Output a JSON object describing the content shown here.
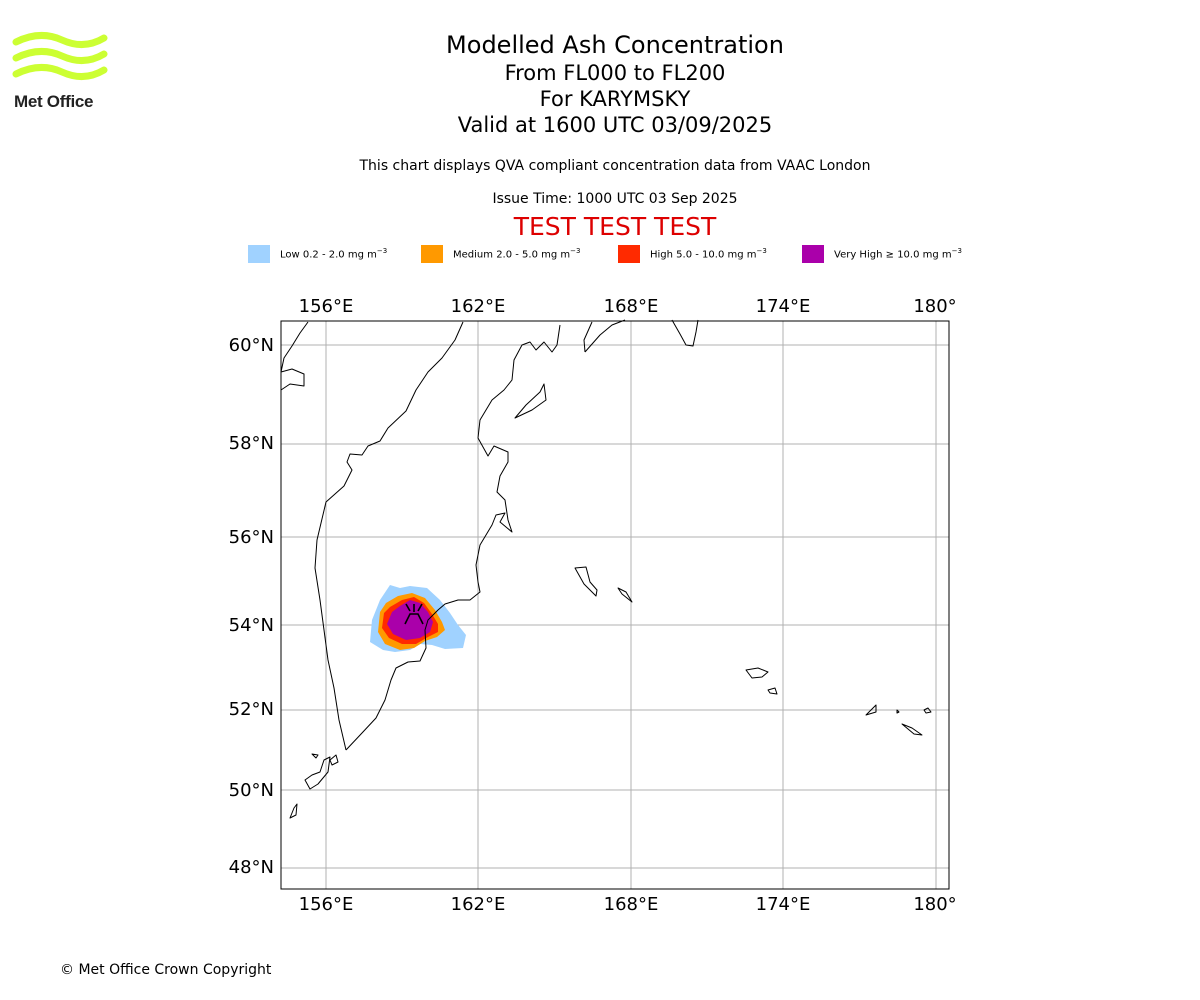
{
  "logo": {
    "text": "Met Office",
    "brand_color": "#ccff33"
  },
  "title": {
    "main": "Modelled Ash Concentration",
    "levels": "From FL000 to FL200",
    "volcano": "For KARYMSKY",
    "valid": "Valid at 1600 UTC 03/09/2025"
  },
  "subtitle": "This chart displays QVA compliant concentration data from VAAC London",
  "issue_time": "Issue Time: 1000 UTC 03 Sep 2025",
  "test_banner": {
    "text": "TEST TEST TEST",
    "color": "#dd0000"
  },
  "legend": [
    {
      "name": "Low",
      "range": "0.2 - 2.0",
      "unit_base": "mg m",
      "unit_exp": "−3",
      "prefix": "",
      "color": "#a0d2ff"
    },
    {
      "name": "Medium",
      "range": "2.0 - 5.0",
      "unit_base": "mg m",
      "unit_exp": "−3",
      "prefix": "",
      "color": "#ff9900"
    },
    {
      "name": "High",
      "range": "5.0 - 10.0",
      "unit_base": "mg m",
      "unit_exp": "−3",
      "prefix": "",
      "color": "#ff2a00"
    },
    {
      "name": "Very High",
      "range": "10.0",
      "unit_base": "mg m",
      "unit_exp": "−3",
      "prefix": "≥",
      "color": "#aa00aa"
    }
  ],
  "map": {
    "lon_ticks": [
      "156°E",
      "162°E",
      "168°E",
      "174°E",
      "180°"
    ],
    "lat_ticks": [
      "60°N",
      "58°N",
      "56°N",
      "54°N",
      "52°N",
      "50°N",
      "48°N"
    ],
    "extent": {
      "lon_min": 154.2,
      "lon_max": 180.7,
      "lat_min": 47.5,
      "lat_max": 60.5
    },
    "volcano": {
      "name": "KARYMSKY",
      "lon": 159.44,
      "lat": 54.05,
      "icon": "volcano-icon"
    },
    "ash_levels": [
      "Low",
      "Medium",
      "High",
      "Very High"
    ]
  },
  "copyright": "© Met Office Crown Copyright"
}
